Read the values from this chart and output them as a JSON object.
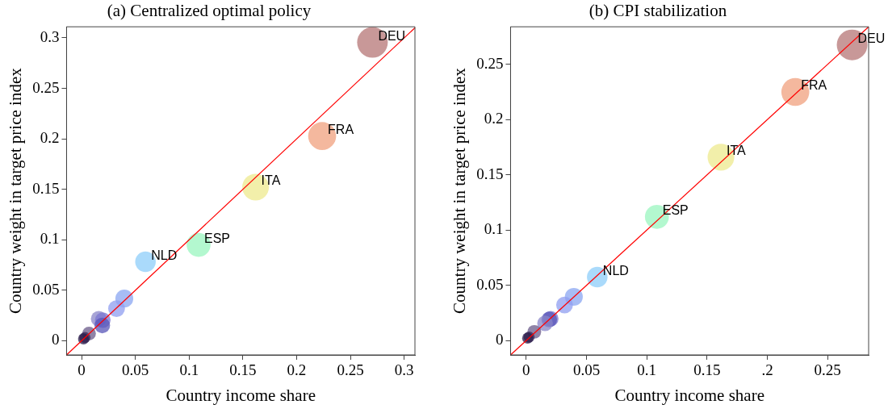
{
  "chart_data": [
    {
      "type": "bubble",
      "title": "(a) Centralized optimal policy",
      "xlabel": "Country income share",
      "ylabel": "Country weight in target price index",
      "xlim": [
        -0.014,
        0.31
      ],
      "ylim": [
        -0.014,
        0.311
      ],
      "xticks": [
        0,
        0.05,
        0.1,
        0.15,
        0.2,
        0.25,
        0.3
      ],
      "yticks": [
        0,
        0.05,
        0.1,
        0.15,
        0.2,
        0.25,
        0.3
      ],
      "grid": false,
      "legend": false,
      "series": [
        {
          "type": "bubble",
          "x": [
            0.2705,
            0.2237,
            0.1618,
            0.1088,
            0.0594,
            0.0397,
            0.0325,
            0.0159,
            0.0197,
            0.0192,
            0.0069,
            0.0031,
            0.0018
          ],
          "values": [
            0.2955,
            0.2028,
            0.1522,
            0.095,
            0.0783,
            0.0418,
            0.0319,
            0.0218,
            0.0205,
            0.0152,
            0.0072,
            0.0032,
            0.0019
          ],
          "sizes": [
            1,
            0.83,
            0.76,
            0.61,
            0.45,
            0.34,
            0.3,
            0.26,
            0.26,
            0.26,
            0.2,
            0.13,
            0.13
          ],
          "colors": [
            "#b57575",
            "#f0a07e",
            "#eeea8e",
            "#9af5bf",
            "#8ecdfa",
            "#8aa6f2",
            "#8f9df0",
            "#8a86c8",
            "#7a76d0",
            "#5856b8",
            "#6a5a8a",
            "#3a2a5a",
            "#2a1a4a"
          ]
        },
        {
          "type": "line",
          "x": [
            -0.014,
            0.31
          ],
          "values": [
            -0.014,
            0.31
          ],
          "color": "#ff0000"
        }
      ],
      "annotations": [
        {
          "text": "DEU",
          "x": 0.2705,
          "y": 0.2955
        },
        {
          "text": "FRA",
          "x": 0.2237,
          "y": 0.2028
        },
        {
          "text": "ITA",
          "x": 0.1618,
          "y": 0.1522
        },
        {
          "text": "ESP",
          "x": 0.1088,
          "y": 0.095
        },
        {
          "text": "NLD",
          "x": 0.0594,
          "y": 0.0783
        }
      ]
    },
    {
      "type": "bubble",
      "title": "(b) CPI stabilization",
      "xlabel": "Country income share",
      "ylabel": "Country weight in target price index",
      "xlim": [
        -0.013,
        0.284
      ],
      "ylim": [
        -0.013,
        0.284
      ],
      "xticks": [
        0,
        0.05,
        0.1,
        0.15,
        {
          "value": 0.2,
          "label": ".2"
        },
        0.25
      ],
      "yticks": [
        0,
        0.05,
        0.1,
        0.15,
        0.2,
        0.25
      ],
      "grid": false,
      "legend": false,
      "series": [
        {
          "type": "bubble",
          "x": [
            0.2703,
            0.2232,
            0.1615,
            0.1084,
            0.0589,
            0.0395,
            0.0318,
            0.0203,
            0.0191,
            0.0156,
            0.0067,
            0.0024,
            0.0012
          ],
          "values": [
            0.2676,
            0.225,
            0.166,
            0.112,
            0.0575,
            0.0396,
            0.0322,
            0.0198,
            0.0191,
            0.0156,
            0.0079,
            0.0032,
            0.0022
          ],
          "sizes": [
            1,
            0.83,
            0.76,
            0.61,
            0.45,
            0.34,
            0.3,
            0.26,
            0.26,
            0.26,
            0.2,
            0.13,
            0.13
          ],
          "colors": [
            "#b57575",
            "#f0a07e",
            "#eeea8e",
            "#9af5bf",
            "#8ecdfa",
            "#8aa6f2",
            "#8f9df0",
            "#7a76d0",
            "#5856b8",
            "#8a86c8",
            "#6a5a8a",
            "#3a2a5a",
            "#2a1a4a"
          ]
        },
        {
          "type": "line",
          "x": [
            -0.013,
            0.284
          ],
          "values": [
            -0.013,
            0.284
          ],
          "color": "#ff0000"
        }
      ],
      "annotations": [
        {
          "text": "DEU",
          "x": 0.2703,
          "y": 0.2676
        },
        {
          "text": "FRA",
          "x": 0.2232,
          "y": 0.225
        },
        {
          "text": "ITA",
          "x": 0.1615,
          "y": 0.166
        },
        {
          "text": "ESP",
          "x": 0.1084,
          "y": 0.112
        },
        {
          "text": "NLD",
          "x": 0.0589,
          "y": 0.0575
        }
      ]
    }
  ]
}
